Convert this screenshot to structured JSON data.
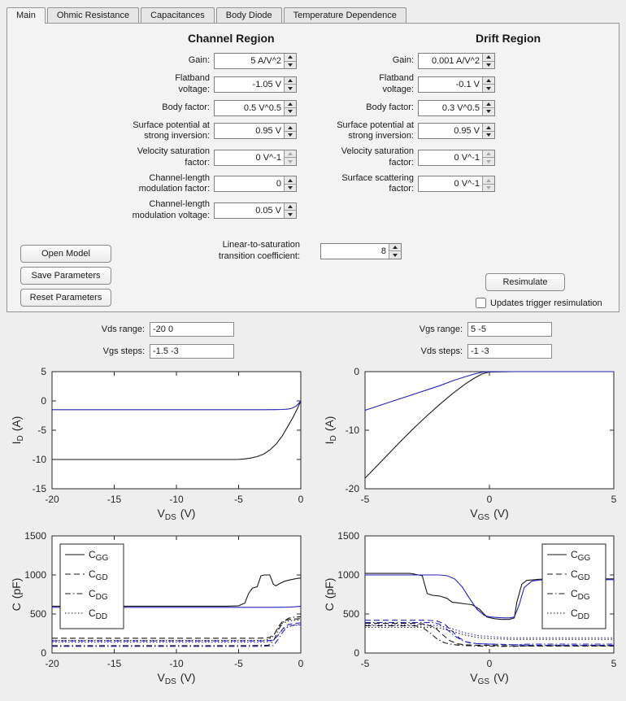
{
  "tabs": [
    {
      "label": "Main"
    },
    {
      "label": "Ohmic Resistance"
    },
    {
      "label": "Capacitances"
    },
    {
      "label": "Body Diode"
    },
    {
      "label": "Temperature Dependence"
    }
  ],
  "panel": {
    "channel": {
      "title": "Channel Region",
      "fields": [
        {
          "label": "Gain:",
          "value": "5 A/V^2"
        },
        {
          "label": "Flatband\nvoltage:",
          "value": "-1.05 V"
        },
        {
          "label": "Body factor:",
          "value": "0.5 V^0.5"
        },
        {
          "label": "Surface potential at\nstrong inversion:",
          "value": "0.95 V"
        },
        {
          "label": "Velocity saturation\nfactor:",
          "value": "0 V^-1"
        },
        {
          "label": "Channel-length\nmodulation factor:",
          "value": "0"
        },
        {
          "label": "Channel-length\nmodulation voltage:",
          "value": "0.05 V"
        }
      ]
    },
    "drift": {
      "title": "Drift Region",
      "fields": [
        {
          "label": "Gain:",
          "value": "0.001 A/V^2"
        },
        {
          "label": "Flatband\nvoltage:",
          "value": "-0.1 V"
        },
        {
          "label": "Body factor:",
          "value": "0.3 V^0.5"
        },
        {
          "label": "Surface potential at\nstrong inversion:",
          "value": "0.95 V"
        },
        {
          "label": "Velocity saturation\nfactor:",
          "value": "0 V^-1"
        },
        {
          "label": "Surface scattering\nfactor:",
          "value": "0 V^-1"
        }
      ]
    },
    "lin_sat": {
      "label": "Linear-to-saturation\ntransition coefficient:",
      "value": "8"
    },
    "buttons": {
      "open_model": "Open Model",
      "save_parameters": "Save Parameters",
      "reset_parameters": "Reset Parameters",
      "resimulate": "Resimulate"
    },
    "checkbox_label": "Updates trigger resimulation"
  },
  "sim": {
    "vds_range": {
      "label": "Vds range:",
      "value": "-20 0"
    },
    "vgs_steps": {
      "label": "Vgs steps:",
      "value": "-1.5 -3"
    },
    "vgs_range": {
      "label": "Vgs range:",
      "value": "5 -5"
    },
    "vds_steps": {
      "label": "Vds steps:",
      "value": "-1 -3"
    }
  },
  "colors": {
    "black_line": "#1a1a1a",
    "blue_line": "#2323bd"
  },
  "chart_data": [
    {
      "type": "line",
      "title": "",
      "xlabel": {
        "base": "V",
        "sub": "DS",
        "unit": "(V)"
      },
      "ylabel": {
        "base": "I",
        "sub": "D",
        "unit": "(A)"
      },
      "xlim": [
        -20,
        0
      ],
      "ylim": [
        -15,
        5
      ],
      "xticks": [
        -20,
        -15,
        -10,
        -5,
        0
      ],
      "yticks": [
        -15,
        -10,
        -5,
        0,
        5
      ],
      "legend": null,
      "series": [
        {
          "name": "Id at Vgs step -3",
          "color": "#1a1a1a",
          "dash": "solid",
          "x": [
            -20,
            -15,
            -10,
            -7,
            -6,
            -5,
            -4.5,
            -4,
            -3.5,
            -3,
            -2.5,
            -2,
            -1.5,
            -1,
            -0.6,
            -0.3,
            0
          ],
          "y": [
            -10,
            -10,
            -10,
            -10,
            -10,
            -9.98,
            -9.9,
            -9.75,
            -9.5,
            -9.1,
            -8.4,
            -7.4,
            -6,
            -4.2,
            -2.7,
            -1.4,
            0
          ]
        },
        {
          "name": "Id at Vgs step -1.5",
          "color": "#2323bd",
          "dash": "solid",
          "x": [
            -20,
            -10,
            -5,
            -3,
            -2,
            -1.5,
            -1.2,
            -1,
            -0.8,
            -0.6,
            -0.4,
            -0.2,
            0
          ],
          "y": [
            -1.5,
            -1.5,
            -1.5,
            -1.5,
            -1.49,
            -1.46,
            -1.42,
            -1.37,
            -1.3,
            -1.15,
            -0.9,
            -0.5,
            0
          ]
        }
      ]
    },
    {
      "type": "line",
      "title": "",
      "xlabel": {
        "base": "V",
        "sub": "GS",
        "unit": "(V)"
      },
      "ylabel": {
        "base": "I",
        "sub": "D",
        "unit": "(A)"
      },
      "xlim": [
        -5,
        5
      ],
      "ylim": [
        -20,
        0
      ],
      "xticks": [
        -5,
        0,
        5
      ],
      "yticks": [
        -20,
        -10,
        0
      ],
      "legend": null,
      "series": [
        {
          "name": "Id at Vds step -3",
          "color": "#1a1a1a",
          "dash": "solid",
          "x": [
            -5,
            -4.5,
            -4,
            -3.5,
            -3,
            -2.5,
            -2,
            -1.5,
            -1,
            -0.6,
            -0.3,
            0,
            1,
            5
          ],
          "y": [
            -18.2,
            -16,
            -13.8,
            -11.6,
            -9.5,
            -7.5,
            -5.6,
            -3.8,
            -2.2,
            -1.1,
            -0.4,
            -0.05,
            0,
            0
          ]
        },
        {
          "name": "Id at Vds step -1",
          "color": "#2323bd",
          "dash": "solid",
          "x": [
            -5,
            -4.5,
            -4,
            -3.5,
            -3,
            -2.5,
            -2,
            -1.5,
            -1,
            -0.6,
            -0.3,
            0,
            1,
            5
          ],
          "y": [
            -6.6,
            -5.9,
            -5.2,
            -4.5,
            -3.8,
            -3.1,
            -2.4,
            -1.6,
            -0.9,
            -0.4,
            -0.1,
            0,
            0,
            0
          ]
        }
      ]
    },
    {
      "type": "line",
      "title": "",
      "xlabel": {
        "base": "V",
        "sub": "DS",
        "unit": "(V)"
      },
      "ylabel": {
        "base": "C",
        "sub": "",
        "unit": "(pF)"
      },
      "xlim": [
        -20,
        0
      ],
      "ylim": [
        0,
        1500
      ],
      "xticks": [
        -20,
        -15,
        -10,
        -5,
        0
      ],
      "yticks": [
        0,
        500,
        1000,
        1500
      ],
      "legend": {
        "pos": "nw",
        "entries": [
          {
            "base": "C",
            "sub": "GG",
            "dash": "solid"
          },
          {
            "base": "C",
            "sub": "GD",
            "dash": "dashed"
          },
          {
            "base": "C",
            "sub": "DG",
            "dash": "dashdot"
          },
          {
            "base": "C",
            "sub": "DD",
            "dash": "dotted"
          }
        ]
      },
      "series": [
        {
          "name": "CGG black",
          "color": "#1a1a1a",
          "dash": "solid",
          "x": [
            -20,
            -6,
            -5,
            -4.5,
            -4.2,
            -3.9,
            -3.5,
            -3.2,
            -2.9,
            -2.5,
            -2.2,
            -2,
            -1.7,
            -1.3,
            -0.8,
            -0.3,
            0
          ],
          "y": [
            600,
            600,
            605,
            640,
            760,
            830,
            850,
            990,
            1000,
            1000,
            880,
            860,
            890,
            920,
            940,
            955,
            960
          ]
        },
        {
          "name": "CGD black",
          "color": "#1a1a1a",
          "dash": "dashed",
          "x": [
            -20,
            -4,
            -3,
            -2.5,
            -2.1,
            -1.8,
            -1.5,
            -1.1,
            -0.6,
            0
          ],
          "y": [
            190,
            190,
            192,
            200,
            250,
            340,
            400,
            425,
            435,
            440
          ]
        },
        {
          "name": "CDG black",
          "color": "#1a1a1a",
          "dash": "dashdot",
          "x": [
            -20,
            -4,
            -2.6,
            -2.2,
            -1.8,
            -1.4,
            -1,
            -0.5,
            0
          ],
          "y": [
            95,
            95,
            100,
            150,
            300,
            400,
            445,
            460,
            465
          ]
        },
        {
          "name": "CDD black",
          "color": "#1a1a1a",
          "dash": "dotted",
          "x": [
            -20,
            -4,
            -2.8,
            -2.3,
            -1.9,
            -1.5,
            -1,
            -0.5,
            0
          ],
          "y": [
            160,
            160,
            165,
            200,
            300,
            380,
            410,
            420,
            425
          ]
        },
        {
          "name": "CGG blue",
          "color": "#2323bd",
          "dash": "solid",
          "x": [
            -20,
            -3,
            -2,
            -1,
            -0.5,
            0
          ],
          "y": [
            585,
            585,
            585,
            588,
            592,
            600
          ]
        },
        {
          "name": "CGD blue",
          "color": "#2323bd",
          "dash": "dashed",
          "x": [
            -20,
            -3,
            -2.2,
            -1.8,
            -1.4,
            -1,
            -0.5,
            0
          ],
          "y": [
            155,
            155,
            165,
            230,
            320,
            365,
            380,
            385
          ]
        },
        {
          "name": "CDG blue",
          "color": "#2323bd",
          "dash": "dashdot",
          "x": [
            -20,
            -3,
            -2.2,
            -1.8,
            -1.4,
            -1,
            -0.5,
            0
          ],
          "y": [
            85,
            85,
            95,
            180,
            280,
            340,
            360,
            365
          ]
        },
        {
          "name": "CDD blue",
          "color": "#2323bd",
          "dash": "dotted",
          "x": [
            -20,
            -3,
            -2.3,
            -1.9,
            -1.5,
            -1,
            -0.5,
            0
          ],
          "y": [
            140,
            140,
            150,
            220,
            300,
            340,
            355,
            360
          ]
        }
      ]
    },
    {
      "type": "line",
      "title": "",
      "xlabel": {
        "base": "V",
        "sub": "GS",
        "unit": "(V)"
      },
      "ylabel": {
        "base": "C",
        "sub": "",
        "unit": "(pF)"
      },
      "xlim": [
        -5,
        5
      ],
      "ylim": [
        0,
        1500
      ],
      "xticks": [
        -5,
        0,
        5
      ],
      "yticks": [
        0,
        500,
        1000,
        1500
      ],
      "legend": {
        "pos": "ne",
        "entries": [
          {
            "base": "C",
            "sub": "GG",
            "dash": "solid"
          },
          {
            "base": "C",
            "sub": "GD",
            "dash": "dashed"
          },
          {
            "base": "C",
            "sub": "DG",
            "dash": "dashdot"
          },
          {
            "base": "C",
            "sub": "DD",
            "dash": "dotted"
          }
        ]
      },
      "series": [
        {
          "name": "CGG black",
          "color": "#1a1a1a",
          "dash": "solid",
          "x": [
            -5,
            -3.2,
            -3,
            -2.7,
            -2.5,
            -2.3,
            -2,
            -1.7,
            -1.5,
            -1.2,
            -1,
            -0.7,
            -0.4,
            -0.1,
            0.2,
            0.5,
            0.8,
            1,
            1.1,
            1.3,
            1.5,
            2,
            3,
            5
          ],
          "y": [
            1020,
            1020,
            1010,
            990,
            760,
            740,
            730,
            700,
            650,
            640,
            630,
            620,
            560,
            460,
            440,
            430,
            430,
            450,
            650,
            880,
            930,
            945,
            950,
            950
          ]
        },
        {
          "name": "CGD black",
          "color": "#1a1a1a",
          "dash": "dashed",
          "x": [
            -5,
            -3,
            -2.6,
            -2.2,
            -1.9,
            -1.6,
            -1.3,
            -1,
            -0.5,
            0,
            0.5,
            1,
            1.5,
            2,
            5
          ],
          "y": [
            380,
            380,
            370,
            330,
            240,
            160,
            120,
            105,
            100,
            100,
            95,
            90,
            90,
            90,
            90
          ]
        },
        {
          "name": "CDG black",
          "color": "#1a1a1a",
          "dash": "dashdot",
          "x": [
            -5,
            -3,
            -2.7,
            -2.4,
            -2.1,
            -1.8,
            -1.5,
            -1.2,
            -0.9,
            -0.5,
            0,
            0.5,
            1,
            1.2,
            1.5,
            2,
            5
          ],
          "y": [
            350,
            350,
            330,
            260,
            180,
            130,
            110,
            100,
            95,
            90,
            90,
            85,
            85,
            90,
            95,
            95,
            95
          ]
        },
        {
          "name": "CDD black",
          "color": "#1a1a1a",
          "dash": "dotted",
          "x": [
            -5,
            -2.5,
            -2,
            -1.5,
            -1,
            -0.5,
            0,
            0.5,
            1,
            1.5,
            2,
            5
          ],
          "y": [
            330,
            330,
            320,
            280,
            230,
            200,
            185,
            180,
            175,
            175,
            175,
            175
          ]
        },
        {
          "name": "CGG blue",
          "color": "#2323bd",
          "dash": "solid",
          "x": [
            -5,
            -2,
            -1.7,
            -1.4,
            -1.1,
            -0.8,
            -0.5,
            -0.2,
            0,
            0.3,
            0.6,
            0.8,
            1,
            1.2,
            1.4,
            1.7,
            2,
            3,
            5
          ],
          "y": [
            1000,
            1000,
            990,
            950,
            850,
            700,
            560,
            480,
            465,
            455,
            450,
            450,
            460,
            620,
            840,
            920,
            935,
            940,
            940
          ]
        },
        {
          "name": "CGD blue",
          "color": "#2323bd",
          "dash": "dashed",
          "x": [
            -5,
            -2.5,
            -2.1,
            -1.8,
            -1.5,
            -1.2,
            -0.9,
            -0.5,
            0,
            0.5,
            1,
            1.5,
            5
          ],
          "y": [
            420,
            420,
            410,
            370,
            280,
            190,
            140,
            120,
            115,
            110,
            105,
            100,
            100
          ]
        },
        {
          "name": "CDG blue",
          "color": "#2323bd",
          "dash": "dashdot",
          "x": [
            -5,
            -2.3,
            -2,
            -1.7,
            -1.4,
            -1.1,
            -0.8,
            -0.5,
            0,
            0.5,
            1,
            1.3,
            1.6,
            2,
            5
          ],
          "y": [
            390,
            390,
            370,
            300,
            220,
            160,
            130,
            120,
            115,
            110,
            105,
            110,
            115,
            115,
            115
          ]
        },
        {
          "name": "CDD blue",
          "color": "#2323bd",
          "dash": "dotted",
          "x": [
            -5,
            -2.5,
            -2,
            -1.5,
            -1,
            -0.5,
            0,
            0.5,
            1,
            1.5,
            2,
            5
          ],
          "y": [
            360,
            360,
            350,
            310,
            260,
            225,
            210,
            200,
            195,
            195,
            195,
            195
          ]
        }
      ]
    }
  ]
}
